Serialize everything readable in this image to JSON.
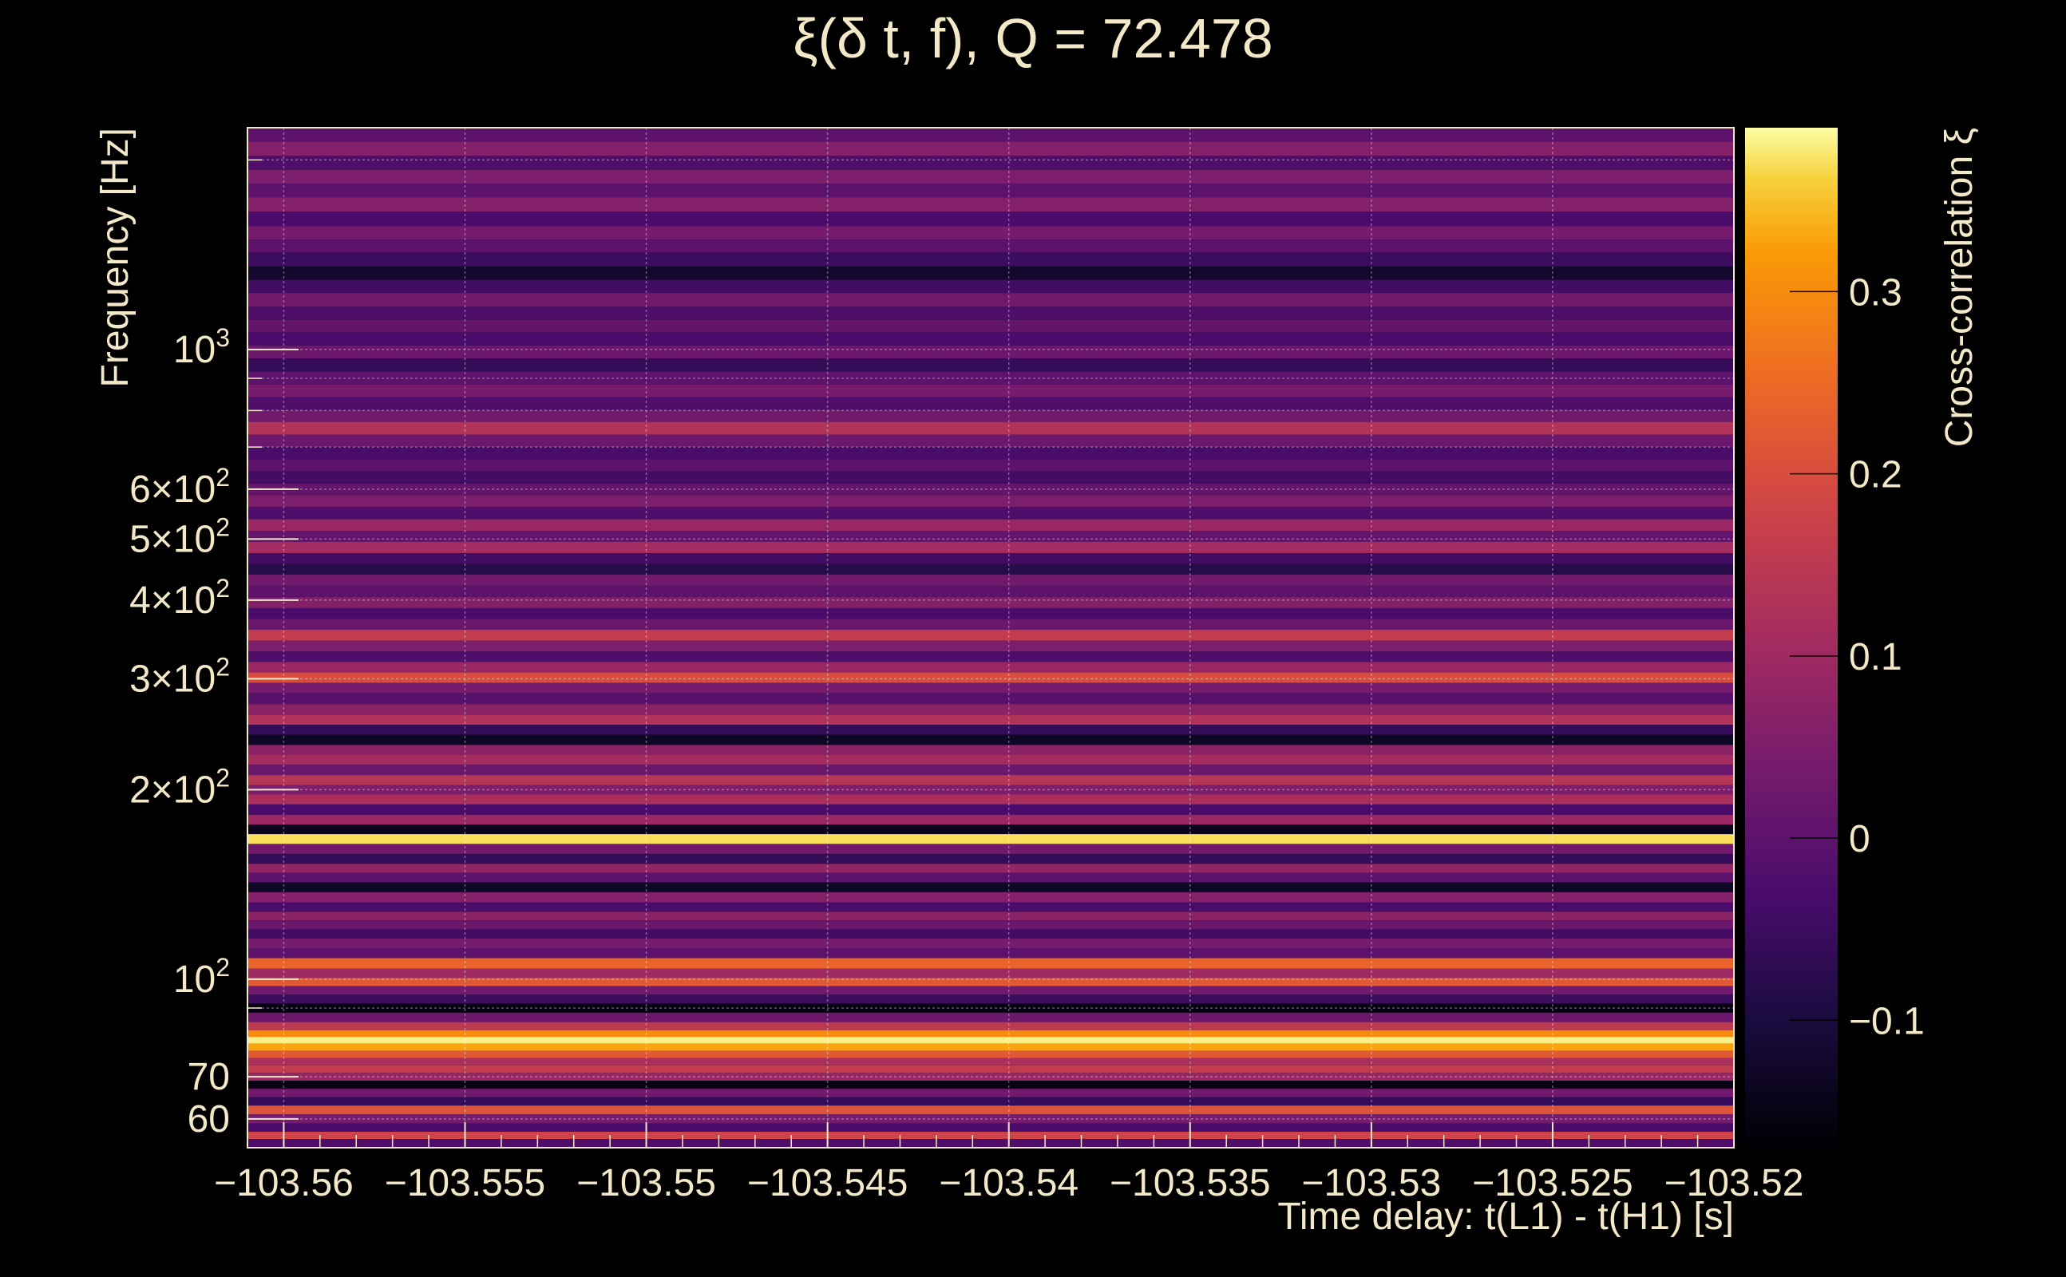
{
  "chart_data": {
    "type": "heatmap",
    "title": "ξ(δ t, f), Q = 72.478",
    "xlabel": "Time delay: t(L1) - t(H1) [s]",
    "ylabel": "Frequency [Hz]",
    "colorbar_label": "Cross-correlation ξ",
    "colormap": "inferno",
    "xlim": [
      -103.561,
      -103.52
    ],
    "ylim": [
      54,
      2250
    ],
    "yscale": "log",
    "grid": true,
    "x_ticks": [
      {
        "value": -103.56,
        "label": "−103.56"
      },
      {
        "value": -103.555,
        "label": "−103.555"
      },
      {
        "value": -103.55,
        "label": "−103.55"
      },
      {
        "value": -103.545,
        "label": "−103.545"
      },
      {
        "value": -103.54,
        "label": "−103.54"
      },
      {
        "value": -103.535,
        "label": "−103.535"
      },
      {
        "value": -103.53,
        "label": "−103.53"
      },
      {
        "value": -103.525,
        "label": "−103.525"
      },
      {
        "value": -103.52,
        "label": "−103.52"
      }
    ],
    "y_ticks": [
      {
        "value": 60,
        "label": "60"
      },
      {
        "value": 70,
        "label": "70"
      },
      {
        "value": 100,
        "base": "10",
        "exp": "2"
      },
      {
        "value": 200,
        "base": "2×10",
        "exp": "2"
      },
      {
        "value": 300,
        "base": "3×10",
        "exp": "2"
      },
      {
        "value": 400,
        "base": "4×10",
        "exp": "2"
      },
      {
        "value": 500,
        "base": "5×10",
        "exp": "2"
      },
      {
        "value": 600,
        "base": "6×10",
        "exp": "2"
      },
      {
        "value": 1000,
        "base": "10",
        "exp": "3"
      }
    ],
    "y_gridlines": [
      60,
      70,
      80,
      90,
      100,
      200,
      300,
      400,
      500,
      600,
      700,
      800,
      900,
      1000,
      2000
    ],
    "color_range": [
      -0.17,
      0.39
    ],
    "colorbar_ticks": [
      {
        "value": -0.1,
        "label": "−0.1"
      },
      {
        "value": 0,
        "label": "0"
      },
      {
        "value": 0.1,
        "label": "0.1"
      },
      {
        "value": 0.2,
        "label": "0.2"
      },
      {
        "value": 0.3,
        "label": "0.3"
      }
    ],
    "bands": [
      {
        "f": 2200,
        "v": 0.0
      },
      {
        "f": 2080,
        "v": 0.06
      },
      {
        "f": 1980,
        "v": -0.02
      },
      {
        "f": 1880,
        "v": 0.05
      },
      {
        "f": 1790,
        "v": 0.0
      },
      {
        "f": 1700,
        "v": 0.06
      },
      {
        "f": 1610,
        "v": -0.03
      },
      {
        "f": 1530,
        "v": 0.04
      },
      {
        "f": 1460,
        "v": 0.0
      },
      {
        "f": 1390,
        "v": -0.05
      },
      {
        "f": 1320,
        "v": -0.12
      },
      {
        "f": 1260,
        "v": -0.04
      },
      {
        "f": 1200,
        "v": 0.03
      },
      {
        "f": 1140,
        "v": -0.02
      },
      {
        "f": 1090,
        "v": 0.01
      },
      {
        "f": 1040,
        "v": -0.03
      },
      {
        "f": 990,
        "v": 0.02
      },
      {
        "f": 945,
        "v": -0.06
      },
      {
        "f": 900,
        "v": 0.0
      },
      {
        "f": 860,
        "v": 0.04
      },
      {
        "f": 820,
        "v": -0.02
      },
      {
        "f": 785,
        "v": 0.03
      },
      {
        "f": 750,
        "v": 0.13
      },
      {
        "f": 715,
        "v": 0.02
      },
      {
        "f": 685,
        "v": -0.03
      },
      {
        "f": 655,
        "v": 0.0
      },
      {
        "f": 625,
        "v": -0.04
      },
      {
        "f": 600,
        "v": 0.01
      },
      {
        "f": 575,
        "v": 0.05
      },
      {
        "f": 550,
        "v": -0.02
      },
      {
        "f": 525,
        "v": 0.09
      },
      {
        "f": 505,
        "v": 0.01
      },
      {
        "f": 485,
        "v": 0.11
      },
      {
        "f": 465,
        "v": -0.04
      },
      {
        "f": 448,
        "v": -0.08
      },
      {
        "f": 430,
        "v": 0.03
      },
      {
        "f": 412,
        "v": 0.0
      },
      {
        "f": 396,
        "v": 0.06
      },
      {
        "f": 381,
        "v": -0.03
      },
      {
        "f": 366,
        "v": 0.02
      },
      {
        "f": 352,
        "v": 0.16
      },
      {
        "f": 338,
        "v": 0.05
      },
      {
        "f": 325,
        "v": -0.02
      },
      {
        "f": 313,
        "v": 0.09
      },
      {
        "f": 301,
        "v": 0.2
      },
      {
        "f": 290,
        "v": 0.04
      },
      {
        "f": 279,
        "v": -0.01
      },
      {
        "f": 268,
        "v": 0.07
      },
      {
        "f": 258,
        "v": 0.13
      },
      {
        "f": 249,
        "v": -0.06
      },
      {
        "f": 240,
        "v": -0.13
      },
      {
        "f": 231,
        "v": 0.07
      },
      {
        "f": 223,
        "v": 0.11
      },
      {
        "f": 215,
        "v": 0.02
      },
      {
        "f": 207,
        "v": 0.14
      },
      {
        "f": 200,
        "v": 0.05
      },
      {
        "f": 193,
        "v": 0.12
      },
      {
        "f": 186,
        "v": -0.03
      },
      {
        "f": 179,
        "v": 0.09
      },
      {
        "f": 173,
        "v": -0.14
      },
      {
        "f": 167,
        "v": 0.37
      },
      {
        "f": 161,
        "v": 0.03
      },
      {
        "f": 155,
        "v": -0.06
      },
      {
        "f": 150,
        "v": 0.08
      },
      {
        "f": 145,
        "v": 0.0
      },
      {
        "f": 140,
        "v": -0.13
      },
      {
        "f": 135,
        "v": 0.06
      },
      {
        "f": 130,
        "v": -0.03
      },
      {
        "f": 126,
        "v": 0.07
      },
      {
        "f": 122,
        "v": 0.02
      },
      {
        "f": 118,
        "v": -0.04
      },
      {
        "f": 114,
        "v": 0.04
      },
      {
        "f": 110,
        "v": 0.0
      },
      {
        "f": 106,
        "v": 0.24
      },
      {
        "f": 102,
        "v": 0.1
      },
      {
        "f": 99,
        "v": 0.22
      },
      {
        "f": 96,
        "v": 0.03
      },
      {
        "f": 93,
        "v": -0.05
      },
      {
        "f": 90,
        "v": -0.15
      },
      {
        "f": 87,
        "v": 0.02
      },
      {
        "f": 84,
        "v": 0.15
      },
      {
        "f": 82,
        "v": 0.3
      },
      {
        "f": 80,
        "v": 0.38
      },
      {
        "f": 78,
        "v": 0.33
      },
      {
        "f": 76,
        "v": 0.22
      },
      {
        "f": 74,
        "v": 0.12
      },
      {
        "f": 72,
        "v": 0.16
      },
      {
        "f": 70,
        "v": 0.09
      },
      {
        "f": 68,
        "v": -0.15
      },
      {
        "f": 66,
        "v": 0.03
      },
      {
        "f": 64,
        "v": -0.06
      },
      {
        "f": 62,
        "v": 0.21
      },
      {
        "f": 60,
        "v": 0.04
      },
      {
        "f": 58,
        "v": -0.03
      },
      {
        "f": 56.5,
        "v": 0.18
      },
      {
        "f": 55,
        "v": -0.02
      }
    ]
  }
}
